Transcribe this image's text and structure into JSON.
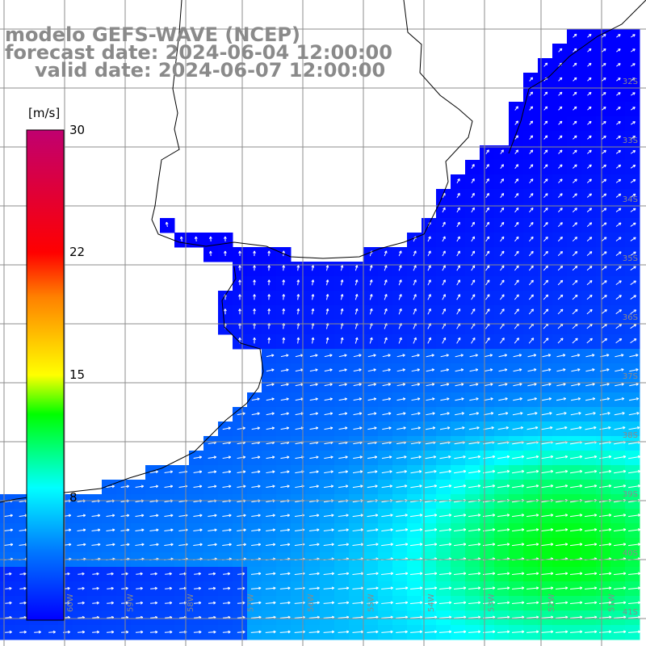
{
  "title": {
    "line1": "modelo GEFS-WAVE (NCEP)",
    "line2": "forecast date: 2024-06-04 12:00:00",
    "line3": "valid date: 2024-06-07 12:00:00"
  },
  "colorbar": {
    "unit": "[m/s]",
    "ticks": [
      {
        "label": "30",
        "value": 30
      },
      {
        "label": "22",
        "value": 22
      },
      {
        "label": "15",
        "value": 15
      },
      {
        "label": "8",
        "value": 8
      }
    ],
    "range": [
      0,
      30
    ],
    "colors": [
      "#0000ff",
      "#00c8ff",
      "#00ffff",
      "#00ff00",
      "#ffff00",
      "#ff8000",
      "#ff0000",
      "#c00070"
    ]
  },
  "map": {
    "type": "wind-speed-map-with-vectors",
    "land_color": "#ffffff",
    "grid_color": "#8c8c8c",
    "lat_labels": [
      "32S",
      "33S",
      "34S",
      "35S",
      "36S",
      "37S",
      "38S",
      "39S",
      "40S",
      "41S"
    ],
    "lon_labels": [
      "60W",
      "59W",
      "58W",
      "57W",
      "56W",
      "55W",
      "54W",
      "53W",
      "52W",
      "51W"
    ]
  }
}
